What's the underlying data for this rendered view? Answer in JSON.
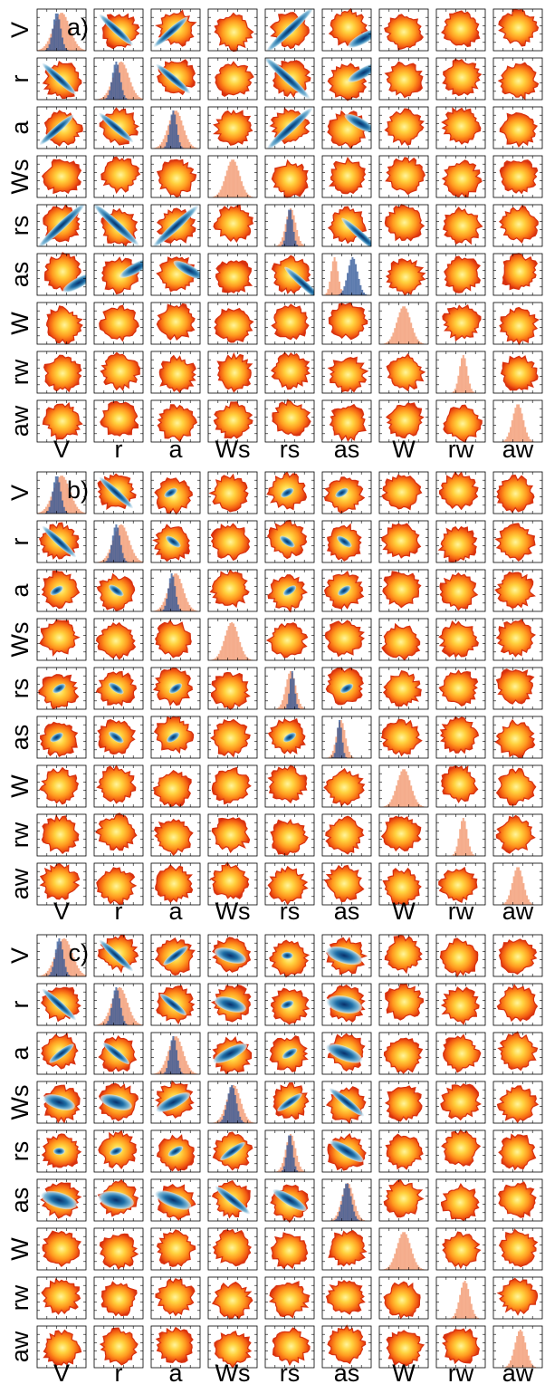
{
  "chart_data": [
    {
      "type": "corner-plot",
      "panel_label": "a)",
      "variables": [
        "V",
        "r",
        "a",
        "Ws",
        "rs",
        "as",
        "W",
        "rw",
        "aw"
      ],
      "posterior_color": "#2f5597",
      "prior_color": "#f4a582",
      "diagonal_histograms": [
        {
          "variable": "V",
          "posterior": true,
          "post_center": 0.4,
          "post_width": 0.08,
          "prior_center": 0.5,
          "prior_width": 0.17
        },
        {
          "variable": "r",
          "posterior": true,
          "post_center": 0.45,
          "post_width": 0.08,
          "prior_center": 0.55,
          "prior_width": 0.16
        },
        {
          "variable": "a",
          "posterior": true,
          "post_center": 0.45,
          "post_width": 0.07,
          "prior_center": 0.5,
          "prior_width": 0.15
        },
        {
          "variable": "Ws",
          "posterior": false,
          "prior_center": 0.5,
          "prior_width": 0.14
        },
        {
          "variable": "rs",
          "posterior": true,
          "post_center": 0.5,
          "post_width": 0.06,
          "prior_center": 0.52,
          "prior_width": 0.1
        },
        {
          "variable": "as",
          "posterior": true,
          "post_center": 0.62,
          "post_width": 0.1,
          "prior_center": 0.25,
          "prior_width": 0.07
        },
        {
          "variable": "W",
          "posterior": false,
          "prior_center": 0.5,
          "prior_width": 0.14
        },
        {
          "variable": "rw",
          "posterior": false,
          "prior_center": 0.55,
          "prior_width": 0.08
        },
        {
          "variable": "aw",
          "posterior": false,
          "prior_center": 0.5,
          "prior_width": 0.11
        }
      ],
      "correlated_pairs": [
        {
          "row": "r",
          "col": "V",
          "rho": -0.92,
          "center": [
            0.45,
            0.5
          ],
          "spread": 0.34
        },
        {
          "row": "a",
          "col": "V",
          "rho": 0.88,
          "center": [
            0.4,
            0.45
          ],
          "spread": 0.34
        },
        {
          "row": "a",
          "col": "r",
          "rho": -0.85,
          "center": [
            0.45,
            0.5
          ],
          "spread": 0.34
        },
        {
          "row": "rs",
          "col": "V",
          "rho": 0.95,
          "center": [
            0.5,
            0.5
          ],
          "spread": 0.48
        },
        {
          "row": "rs",
          "col": "r",
          "rho": -0.92,
          "center": [
            0.45,
            0.52
          ],
          "spread": 0.46
        },
        {
          "row": "rs",
          "col": "a",
          "rho": 0.92,
          "center": [
            0.5,
            0.48
          ],
          "spread": 0.46
        },
        {
          "row": "as",
          "col": "V",
          "rho": 0.55,
          "center": [
            0.85,
            0.3
          ],
          "spread": 0.3
        },
        {
          "row": "as",
          "col": "r",
          "rho": 0.55,
          "center": [
            0.85,
            0.65
          ],
          "spread": 0.3
        },
        {
          "row": "as",
          "col": "a",
          "rho": -0.55,
          "center": [
            0.78,
            0.6
          ],
          "spread": 0.3
        },
        {
          "row": "as",
          "col": "rs",
          "rho": -0.9,
          "center": [
            0.8,
            0.25
          ],
          "spread": 0.4
        }
      ]
    },
    {
      "type": "corner-plot",
      "panel_label": "b)",
      "variables": [
        "V",
        "r",
        "a",
        "Ws",
        "rs",
        "as",
        "W",
        "rw",
        "aw"
      ],
      "posterior_color": "#2f5597",
      "prior_color": "#f4a582",
      "diagonal_histograms": [
        {
          "variable": "V",
          "posterior": true,
          "post_center": 0.4,
          "post_width": 0.08,
          "prior_center": 0.5,
          "prior_width": 0.17
        },
        {
          "variable": "r",
          "posterior": true,
          "post_center": 0.45,
          "post_width": 0.08,
          "prior_center": 0.55,
          "prior_width": 0.16
        },
        {
          "variable": "a",
          "posterior": true,
          "post_center": 0.42,
          "post_width": 0.07,
          "prior_center": 0.5,
          "prior_width": 0.15
        },
        {
          "variable": "Ws",
          "posterior": false,
          "prior_center": 0.48,
          "prior_width": 0.14
        },
        {
          "variable": "rs",
          "posterior": true,
          "post_center": 0.55,
          "post_width": 0.05,
          "prior_center": 0.52,
          "prior_width": 0.1
        },
        {
          "variable": "as",
          "posterior": true,
          "post_center": 0.35,
          "post_width": 0.05,
          "prior_center": 0.38,
          "prior_width": 0.09
        },
        {
          "variable": "W",
          "posterior": false,
          "prior_center": 0.5,
          "prior_width": 0.14
        },
        {
          "variable": "rw",
          "posterior": false,
          "prior_center": 0.55,
          "prior_width": 0.08
        },
        {
          "variable": "aw",
          "posterior": false,
          "prior_center": 0.5,
          "prior_width": 0.11
        }
      ],
      "correlated_pairs": [
        {
          "row": "r",
          "col": "V",
          "rho": -0.92,
          "center": [
            0.45,
            0.5
          ],
          "spread": 0.34
        },
        {
          "row": "a",
          "col": "V",
          "rho": 0.6,
          "center": [
            0.4,
            0.5
          ],
          "spread": 0.12
        },
        {
          "row": "a",
          "col": "r",
          "rho": -0.7,
          "center": [
            0.45,
            0.5
          ],
          "spread": 0.14
        },
        {
          "row": "rs",
          "col": "V",
          "rho": 0.6,
          "center": [
            0.45,
            0.5
          ],
          "spread": 0.12
        },
        {
          "row": "rs",
          "col": "r",
          "rho": -0.7,
          "center": [
            0.45,
            0.5
          ],
          "spread": 0.14
        },
        {
          "row": "rs",
          "col": "a",
          "rho": 0.7,
          "center": [
            0.5,
            0.5
          ],
          "spread": 0.12
        },
        {
          "row": "as",
          "col": "V",
          "rho": 0.6,
          "center": [
            0.4,
            0.5
          ],
          "spread": 0.12
        },
        {
          "row": "as",
          "col": "r",
          "rho": -0.7,
          "center": [
            0.45,
            0.5
          ],
          "spread": 0.14
        },
        {
          "row": "as",
          "col": "a",
          "rho": 0.7,
          "center": [
            0.45,
            0.5
          ],
          "spread": 0.12
        },
        {
          "row": "as",
          "col": "rs",
          "rho": 0.6,
          "center": [
            0.5,
            0.5
          ],
          "spread": 0.12
        }
      ]
    },
    {
      "type": "corner-plot",
      "panel_label": "c)",
      "variables": [
        "V",
        "r",
        "a",
        "Ws",
        "rs",
        "as",
        "W",
        "rw",
        "aw"
      ],
      "posterior_color": "#2f5597",
      "prior_color": "#f4a582",
      "diagonal_histograms": [
        {
          "variable": "V",
          "posterior": true,
          "post_center": 0.45,
          "post_width": 0.08,
          "prior_center": 0.55,
          "prior_width": 0.17
        },
        {
          "variable": "r",
          "posterior": true,
          "post_center": 0.45,
          "post_width": 0.08,
          "prior_center": 0.52,
          "prior_width": 0.16
        },
        {
          "variable": "a",
          "posterior": true,
          "post_center": 0.45,
          "post_width": 0.07,
          "prior_center": 0.5,
          "prior_width": 0.15
        },
        {
          "variable": "Ws",
          "posterior": true,
          "post_center": 0.48,
          "post_width": 0.09,
          "prior_center": 0.52,
          "prior_width": 0.14
        },
        {
          "variable": "rs",
          "posterior": true,
          "post_center": 0.5,
          "post_width": 0.06,
          "prior_center": 0.52,
          "prior_width": 0.1
        },
        {
          "variable": "as",
          "posterior": true,
          "post_center": 0.5,
          "post_width": 0.09,
          "prior_center": 0.52,
          "prior_width": 0.12
        },
        {
          "variable": "W",
          "posterior": false,
          "prior_center": 0.5,
          "prior_width": 0.14
        },
        {
          "variable": "rw",
          "posterior": false,
          "prior_center": 0.58,
          "prior_width": 0.1
        },
        {
          "variable": "aw",
          "posterior": false,
          "prior_center": 0.55,
          "prior_width": 0.11
        }
      ],
      "correlated_pairs": [
        {
          "row": "r",
          "col": "V",
          "rho": -0.92,
          "center": [
            0.45,
            0.5
          ],
          "spread": 0.34
        },
        {
          "row": "a",
          "col": "V",
          "rho": 0.75,
          "center": [
            0.5,
            0.5
          ],
          "spread": 0.24
        },
        {
          "row": "a",
          "col": "r",
          "rho": -0.8,
          "center": [
            0.45,
            0.5
          ],
          "spread": 0.26
        },
        {
          "row": "Ws",
          "col": "V",
          "rho": -0.3,
          "center": [
            0.45,
            0.5
          ],
          "spread": 0.3
        },
        {
          "row": "Ws",
          "col": "r",
          "rho": -0.3,
          "center": [
            0.45,
            0.5
          ],
          "spread": 0.3
        },
        {
          "row": "Ws",
          "col": "a",
          "rho": 0.5,
          "center": [
            0.45,
            0.5
          ],
          "spread": 0.32
        },
        {
          "row": "rs",
          "col": "V",
          "rho": 0.0,
          "center": [
            0.45,
            0.5
          ],
          "spread": 0.12
        },
        {
          "row": "rs",
          "col": "r",
          "rho": 0.4,
          "center": [
            0.45,
            0.5
          ],
          "spread": 0.12
        },
        {
          "row": "rs",
          "col": "a",
          "rho": 0.6,
          "center": [
            0.5,
            0.5
          ],
          "spread": 0.14
        },
        {
          "row": "rs",
          "col": "Ws",
          "rho": 0.7,
          "center": [
            0.5,
            0.5
          ],
          "spread": 0.24
        },
        {
          "row": "as",
          "col": "V",
          "rho": -0.3,
          "center": [
            0.45,
            0.5
          ],
          "spread": 0.34
        },
        {
          "row": "as",
          "col": "r",
          "rho": -0.2,
          "center": [
            0.45,
            0.5
          ],
          "spread": 0.34
        },
        {
          "row": "as",
          "col": "a",
          "rho": -0.4,
          "center": [
            0.45,
            0.5
          ],
          "spread": 0.34
        },
        {
          "row": "as",
          "col": "Ws",
          "rho": -0.8,
          "center": [
            0.5,
            0.5
          ],
          "spread": 0.34
        },
        {
          "row": "as",
          "col": "rs",
          "rho": -0.6,
          "center": [
            0.5,
            0.5
          ],
          "spread": 0.32
        }
      ]
    }
  ]
}
